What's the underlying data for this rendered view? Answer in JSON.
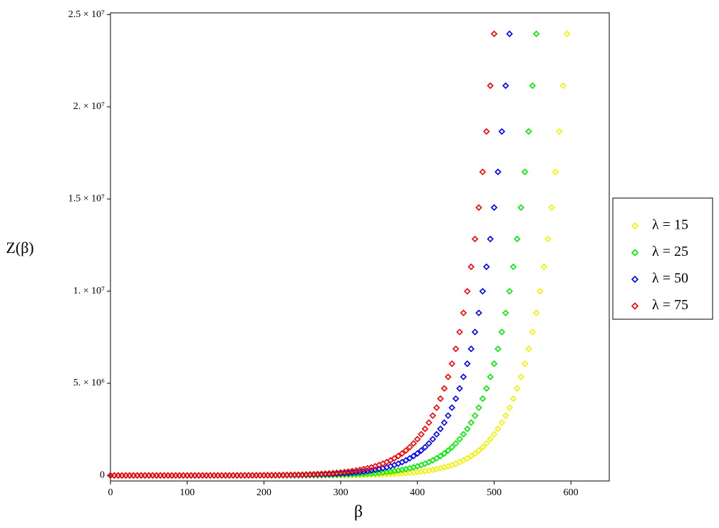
{
  "chart_data": {
    "type": "scatter",
    "ylabel": "Z(β)",
    "xlabel": "β",
    "xlim": [
      0,
      650
    ],
    "ylim": [
      -300000,
      25100000
    ],
    "xticks": [
      0,
      100,
      200,
      300,
      400,
      500,
      600
    ],
    "yticks": [
      0,
      {
        "value": 5000000,
        "label": "5. × 10⁶"
      },
      {
        "value": 10000000,
        "label": "1. × 10⁷"
      },
      {
        "value": 15000000,
        "label": "1.5 × 10⁷"
      },
      {
        "value": 20000000,
        "label": "2. × 10⁷"
      },
      {
        "value": 25000000,
        "label": "2.5 × 10⁷"
      }
    ],
    "legend": "right",
    "x": [
      0,
      5,
      10,
      15,
      20,
      25,
      30,
      35,
      40,
      45,
      50,
      55,
      60,
      65,
      70,
      75,
      80,
      85,
      90,
      95,
      100,
      105,
      110,
      115,
      120,
      125,
      130,
      135,
      140,
      145,
      150,
      155,
      160,
      165,
      170,
      175,
      180,
      185,
      190,
      195,
      200,
      205,
      210,
      215,
      220,
      225,
      230,
      235,
      240,
      245,
      250,
      255,
      260,
      265,
      270,
      275,
      280,
      285,
      290,
      295,
      300,
      305,
      310,
      315,
      320,
      325,
      330,
      335,
      340,
      345,
      350,
      355,
      360,
      365,
      370,
      375,
      380,
      385,
      390,
      395,
      400,
      405,
      410,
      415,
      420,
      425,
      430,
      435,
      440,
      445,
      450,
      455,
      460,
      465,
      470,
      475,
      480,
      485,
      490,
      495,
      500,
      505,
      510,
      515,
      520,
      525,
      530,
      535,
      540,
      545,
      550,
      555,
      560,
      565,
      570,
      575,
      580,
      585,
      590,
      595
    ],
    "series": [
      {
        "name": "λ = 15",
        "color": "#f2f200",
        "values": [
          0,
          0,
          0,
          0,
          0,
          0,
          0,
          0,
          0,
          0,
          0,
          0,
          0,
          0,
          0,
          0,
          0,
          0,
          0,
          0,
          0,
          0,
          0,
          0,
          0,
          0,
          0,
          0,
          0,
          0,
          0,
          0,
          0,
          0,
          0,
          0,
          0,
          0,
          0,
          0,
          0,
          0,
          1000,
          2000,
          2000,
          2000,
          2000,
          3000,
          3000,
          4000,
          4000,
          5000,
          5000,
          6000,
          7000,
          8000,
          9000,
          10000,
          12000,
          13000,
          15000,
          17000,
          19000,
          22000,
          25000,
          28000,
          32000,
          36000,
          41000,
          46000,
          53000,
          60000,
          68000,
          77000,
          87000,
          98000,
          111000,
          126000,
          143000,
          162000,
          183000,
          208000,
          235000,
          267000,
          302000,
          342000,
          388000,
          439000,
          498000,
          564000,
          639000,
          724000,
          821000,
          930000,
          1054000,
          1194000,
          1353000,
          1533000,
          1737000,
          1969000,
          2231000,
          2527000,
          2864000,
          3245000,
          3677000,
          4166000,
          4721000,
          5349000,
          6061000,
          6868000,
          7782000,
          8817000,
          9991000,
          11321000,
          12828000,
          14535000,
          16470000,
          18662000,
          21146000,
          23960000
        ]
      },
      {
        "name": "λ = 25",
        "color": "#00ee00",
        "values": [
          0,
          0,
          0,
          0,
          0,
          0,
          0,
          0,
          0,
          0,
          0,
          0,
          0,
          0,
          0,
          0,
          0,
          0,
          0,
          0,
          0,
          0,
          0,
          0,
          0,
          0,
          0,
          0,
          0,
          0,
          0,
          0,
          0,
          0,
          1000,
          2000,
          2000,
          2000,
          2000,
          3000,
          3000,
          4000,
          4000,
          5000,
          5000,
          6000,
          7000,
          8000,
          9000,
          10000,
          12000,
          13000,
          15000,
          17000,
          19000,
          22000,
          25000,
          28000,
          32000,
          36000,
          41000,
          46000,
          53000,
          60000,
          68000,
          77000,
          87000,
          98000,
          111000,
          126000,
          143000,
          162000,
          183000,
          208000,
          235000,
          267000,
          302000,
          342000,
          388000,
          439000,
          498000,
          564000,
          639000,
          724000,
          821000,
          930000,
          1054000,
          1194000,
          1353000,
          1533000,
          1737000,
          1969000,
          2231000,
          2527000,
          2864000,
          3245000,
          3677000,
          4166000,
          4721000,
          5349000,
          6061000,
          6868000,
          7782000,
          8817000,
          9991000,
          11321000,
          12828000,
          14535000,
          16470000,
          18662000,
          21146000,
          23960000,
          null,
          null,
          null,
          null,
          null,
          null,
          null,
          null
        ]
      },
      {
        "name": "λ = 50",
        "color": "#0000ff",
        "values": [
          0,
          0,
          0,
          0,
          0,
          0,
          0,
          0,
          0,
          0,
          0,
          0,
          0,
          0,
          0,
          0,
          0,
          0,
          0,
          0,
          0,
          0,
          0,
          0,
          0,
          0,
          0,
          1000,
          2000,
          2000,
          2000,
          2000,
          3000,
          3000,
          4000,
          4000,
          5000,
          5000,
          6000,
          7000,
          8000,
          9000,
          10000,
          12000,
          13000,
          15000,
          17000,
          19000,
          22000,
          25000,
          28000,
          32000,
          36000,
          41000,
          46000,
          53000,
          60000,
          68000,
          77000,
          87000,
          98000,
          111000,
          126000,
          143000,
          162000,
          183000,
          208000,
          235000,
          267000,
          302000,
          342000,
          388000,
          439000,
          498000,
          564000,
          639000,
          724000,
          821000,
          930000,
          1054000,
          1194000,
          1353000,
          1533000,
          1737000,
          1969000,
          2231000,
          2527000,
          2864000,
          3245000,
          3677000,
          4166000,
          4721000,
          5349000,
          6061000,
          6868000,
          7782000,
          8817000,
          9991000,
          11321000,
          12828000,
          14535000,
          16470000,
          18662000,
          21146000,
          23960000,
          null,
          null,
          null,
          null,
          null,
          null,
          null,
          null,
          null,
          null,
          null,
          null,
          null,
          null,
          null
        ]
      },
      {
        "name": "λ = 75",
        "color": "#ff0000",
        "values": [
          0,
          0,
          0,
          0,
          0,
          0,
          0,
          0,
          0,
          0,
          0,
          0,
          0,
          0,
          0,
          0,
          0,
          0,
          0,
          0,
          0,
          0,
          0,
          1000,
          2000,
          2000,
          2000,
          2000,
          3000,
          3000,
          4000,
          4000,
          5000,
          5000,
          6000,
          7000,
          8000,
          9000,
          10000,
          12000,
          13000,
          15000,
          17000,
          19000,
          22000,
          25000,
          28000,
          32000,
          36000,
          41000,
          46000,
          53000,
          60000,
          68000,
          77000,
          87000,
          98000,
          111000,
          126000,
          143000,
          162000,
          183000,
          208000,
          235000,
          267000,
          302000,
          342000,
          388000,
          439000,
          498000,
          564000,
          639000,
          724000,
          821000,
          930000,
          1054000,
          1194000,
          1353000,
          1533000,
          1737000,
          1969000,
          2231000,
          2527000,
          2864000,
          3245000,
          3677000,
          4166000,
          4721000,
          5349000,
          6061000,
          6868000,
          7782000,
          8817000,
          9991000,
          11321000,
          12828000,
          14535000,
          16470000,
          18662000,
          21146000,
          23960000,
          null,
          null,
          null,
          null,
          null,
          null,
          null,
          null,
          null,
          null,
          null,
          null,
          null,
          null,
          null,
          null,
          null,
          null,
          null
        ]
      }
    ]
  }
}
